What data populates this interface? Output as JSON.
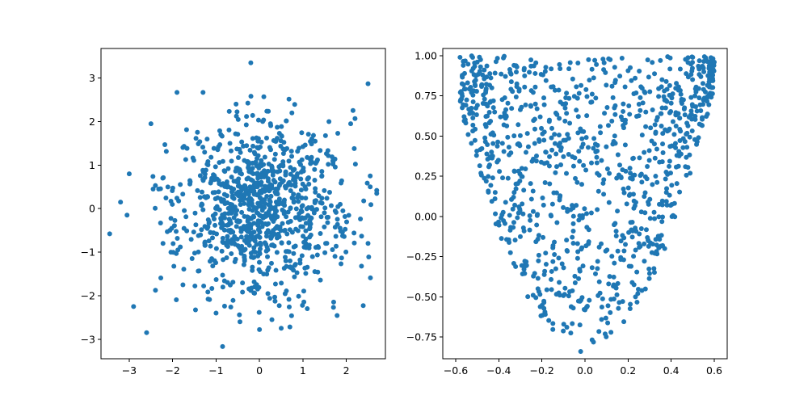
{
  "chart_data": [
    {
      "type": "scatter",
      "title": "",
      "xlabel": "",
      "ylabel": "",
      "xlim": [
        -3.65,
        2.9
      ],
      "ylim": [
        -3.45,
        3.68
      ],
      "xticks": [
        -3,
        -2,
        -1,
        0,
        1,
        2
      ],
      "yticks": [
        -3,
        -2,
        -1,
        0,
        1,
        2,
        3
      ],
      "xtick_labels": [
        "−3",
        "−2",
        "−1",
        "0",
        "1",
        "2"
      ],
      "ytick_labels": [
        "−3",
        "−2",
        "−1",
        "0",
        "1",
        "2",
        "3"
      ],
      "grid": false,
      "legend": "none",
      "color": "#1f77b4",
      "distribution": "standard bivariate normal, approx. 1000 points (mean 0, std 1)",
      "n_points": 1000,
      "outliers": [
        [
          -0.2,
          3.35
        ],
        [
          2.5,
          2.87
        ],
        [
          -3.45,
          -0.58
        ],
        [
          -2.9,
          -2.25
        ],
        [
          -0.85,
          -3.17
        ],
        [
          -2.6,
          -2.85
        ],
        [
          2.7,
          0.42
        ],
        [
          2.7,
          0.35
        ],
        [
          -3.2,
          0.15
        ],
        [
          -3.05,
          -0.15
        ],
        [
          -3.0,
          0.8
        ],
        [
          -2.5,
          1.95
        ],
        [
          -1.9,
          2.67
        ],
        [
          -1.3,
          2.67
        ],
        [
          0.1,
          2.57
        ],
        [
          2.2,
          2.07
        ],
        [
          2.1,
          1.95
        ],
        [
          1.6,
          2.0
        ],
        [
          0.7,
          -2.72
        ],
        [
          0.5,
          -2.75
        ],
        [
          -0.45,
          -2.6
        ],
        [
          0.0,
          -2.78
        ],
        [
          1.1,
          -2.3
        ],
        [
          -1.0,
          -2.4
        ],
        [
          2.55,
          0.75
        ],
        [
          2.55,
          0.5
        ],
        [
          2.5,
          -0.8
        ],
        [
          -2.45,
          0.45
        ]
      ]
    },
    {
      "type": "scatter",
      "title": "",
      "xlabel": "",
      "ylabel": "",
      "xlim": [
        -0.66,
        0.66
      ],
      "ylim": [
        -0.885,
        1.045
      ],
      "xticks": [
        -0.6,
        -0.4,
        -0.2,
        0.0,
        0.2,
        0.4,
        0.6
      ],
      "yticks": [
        -0.75,
        -0.5,
        -0.25,
        0.0,
        0.25,
        0.5,
        0.75,
        1.0
      ],
      "xtick_labels": [
        "−0.6",
        "−0.4",
        "−0.2",
        "0.0",
        "0.2",
        "0.4",
        "0.6"
      ],
      "ytick_labels": [
        "−0.75",
        "−0.50",
        "−0.25",
        "0.00",
        "0.25",
        "0.50",
        "0.75",
        "1.00"
      ],
      "grid": false,
      "legend": "none",
      "color": "#1f77b4",
      "distribution": "approx. 1000 points uniformly filling the region between y = 4.5*x^2 - 0.82 (lower boundary) and y = 1.0 (upper boundary), x in [-0.58, 0.6]",
      "n_points": 1000,
      "region": {
        "lower_curve": "y = 4.5*x^2 - 0.82",
        "upper_bound": 1.0,
        "x_range": [
          -0.58,
          0.6
        ]
      },
      "extreme_points": [
        [
          -0.58,
          0.99
        ],
        [
          0.6,
          0.96
        ],
        [
          -0.02,
          -0.84
        ],
        [
          0.5,
          0.99
        ],
        [
          0.35,
          0.97
        ]
      ]
    }
  ]
}
